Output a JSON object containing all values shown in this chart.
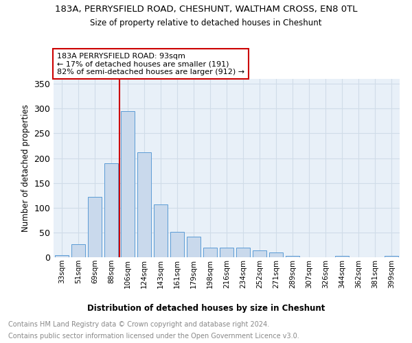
{
  "title1": "183A, PERRYSFIELD ROAD, CHESHUNT, WALTHAM CROSS, EN8 0TL",
  "title2": "Size of property relative to detached houses in Cheshunt",
  "xlabel": "Distribution of detached houses by size in Cheshunt",
  "ylabel": "Number of detached properties",
  "categories": [
    "33sqm",
    "51sqm",
    "69sqm",
    "88sqm",
    "106sqm",
    "124sqm",
    "143sqm",
    "161sqm",
    "179sqm",
    "198sqm",
    "216sqm",
    "234sqm",
    "252sqm",
    "271sqm",
    "289sqm",
    "307sqm",
    "326sqm",
    "344sqm",
    "362sqm",
    "381sqm",
    "399sqm"
  ],
  "values": [
    4,
    27,
    122,
    190,
    295,
    212,
    107,
    51,
    41,
    20,
    20,
    19,
    14,
    10,
    3,
    0,
    0,
    3,
    0,
    0,
    3
  ],
  "bar_color": "#c9d9ec",
  "bar_edge_color": "#5b9bd5",
  "vline_x_index": 3.5,
  "vline_color": "#cc0000",
  "annotation_text": "183A PERRYSFIELD ROAD: 93sqm\n← 17% of detached houses are smaller (191)\n82% of semi-detached houses are larger (912) →",
  "annotation_box_color": "#ffffff",
  "annotation_box_edge": "#cc0000",
  "ylim": [
    0,
    360
  ],
  "yticks": [
    0,
    50,
    100,
    150,
    200,
    250,
    300,
    350
  ],
  "footer1": "Contains HM Land Registry data © Crown copyright and database right 2024.",
  "footer2": "Contains public sector information licensed under the Open Government Licence v3.0.",
  "bg_color": "#ffffff",
  "grid_color": "#d0dce8",
  "plot_bg": "#e8f0f8"
}
